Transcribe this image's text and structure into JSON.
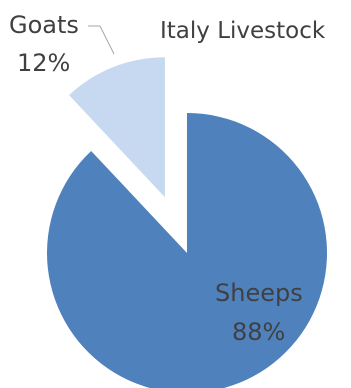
{
  "chart_data": {
    "type": "pie",
    "title": "Italy Livestock",
    "categories": [
      "Sheeps",
      "Goats"
    ],
    "values": [
      88,
      12
    ],
    "value_labels": [
      "88%",
      "12%"
    ],
    "colors": [
      "#4F81BD",
      "#C6D9F1"
    ],
    "exploded": [
      "Goats"
    ],
    "legend": "none"
  }
}
